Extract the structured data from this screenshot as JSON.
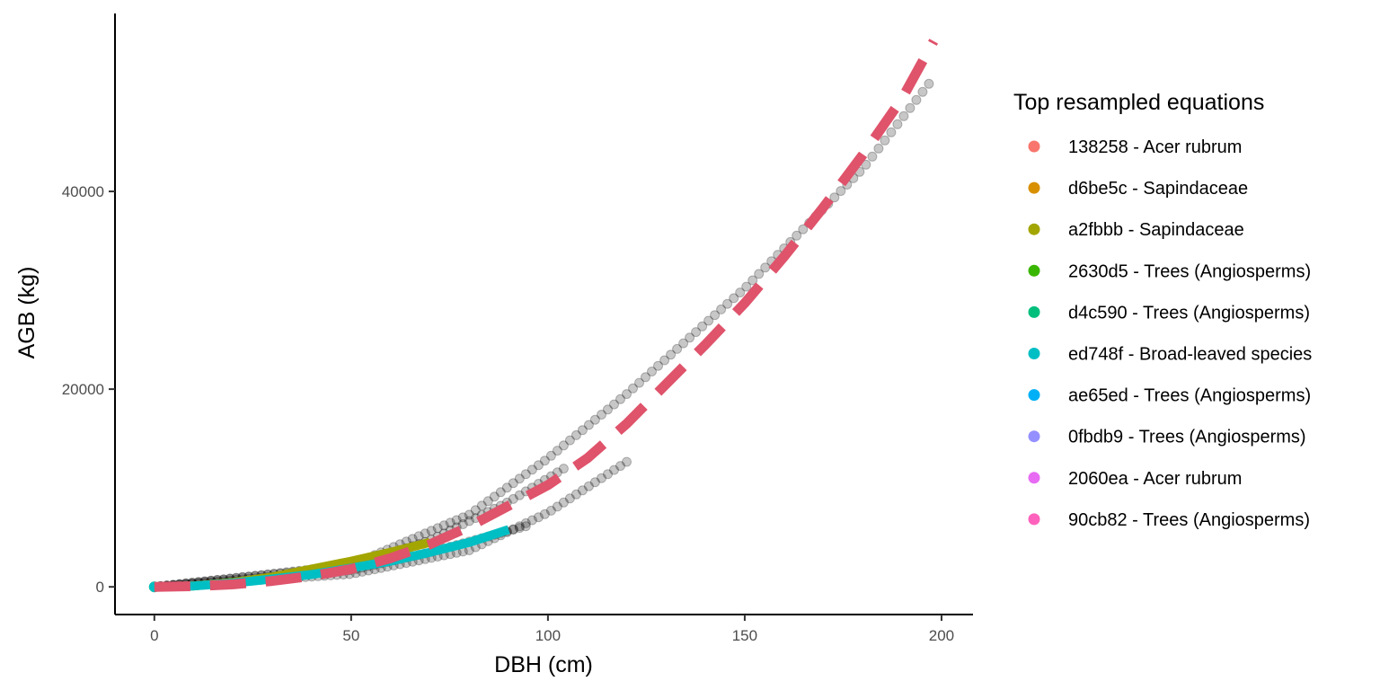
{
  "chart_data": {
    "type": "scatter",
    "title": "",
    "xlabel": "DBH (cm)",
    "ylabel": "AGB (kg)",
    "xlim": [
      -10,
      208
    ],
    "ylim": [
      -2800,
      58000
    ],
    "x_ticks": [
      0,
      50,
      100,
      150,
      200
    ],
    "y_ticks": [
      0,
      20000,
      40000
    ],
    "grid": false,
    "legend": {
      "title": "Top resampled equations",
      "placement": "right",
      "entries": [
        {
          "label": "138258 - Acer rubrum",
          "color": "#F8766D"
        },
        {
          "label": "d6be5c - Sapindaceae",
          "color": "#D89000"
        },
        {
          "label": "a2fbbb - Sapindaceae",
          "color": "#A3A500"
        },
        {
          "label": "2630d5 - Trees (Angiosperms)",
          "color": "#39B600"
        },
        {
          "label": "d4c590 - Trees (Angiosperms)",
          "color": "#00BF7D"
        },
        {
          "label": "ed748f - Broad-leaved species",
          "color": "#00BFC4"
        },
        {
          "label": "ae65ed - Trees (Angiosperms)",
          "color": "#00B0F6"
        },
        {
          "label": "0fbdb9 - Trees (Angiosperms)",
          "color": "#9590FF"
        },
        {
          "label": "2060ea - Acer rubrum",
          "color": "#E76BF3"
        },
        {
          "label": "90cb82 - Trees (Angiosperms)",
          "color": "#FF62BC"
        }
      ]
    },
    "background_points": {
      "color": "#000000",
      "opacity": 0.22,
      "series": [
        {
          "x_range": [
            0,
            198
          ],
          "y_at_x": [
            [
              0,
              0
            ],
            [
              50,
              2200
            ],
            [
              80,
              7300
            ],
            [
              100,
              13000
            ],
            [
              120,
              19500
            ],
            [
              150,
              30200
            ],
            [
              180,
              42300
            ],
            [
              198,
              51500
            ]
          ]
        },
        {
          "x_range": [
            0,
            105
          ],
          "y_at_x": [
            [
              0,
              0
            ],
            [
              50,
              2100
            ],
            [
              70,
              4700
            ],
            [
              90,
              8600
            ],
            [
              105,
              12200
            ]
          ]
        },
        {
          "x_range": [
            0,
            121
          ],
          "y_at_x": [
            [
              0,
              0
            ],
            [
              50,
              1300
            ],
            [
              80,
              3700
            ],
            [
              100,
              7500
            ],
            [
              121,
              12900
            ]
          ]
        },
        {
          "x_range": [
            0,
            95
          ],
          "y_at_x": [
            [
              0,
              0
            ],
            [
              50,
              1700
            ],
            [
              70,
              3500
            ],
            [
              95,
              6200
            ]
          ]
        }
      ]
    },
    "series": [
      {
        "color": "#A3A500",
        "x": [
          0,
          10,
          20,
          30,
          40,
          50,
          60,
          70
        ],
        "y": [
          0,
          100,
          450,
          1000,
          1800,
          2600,
          3500,
          4500
        ]
      },
      {
        "color": "#00BFC4",
        "x": [
          0,
          10,
          20,
          30,
          40,
          50,
          60,
          70,
          80,
          90
        ],
        "y": [
          0,
          90,
          380,
          800,
          1250,
          1900,
          2600,
          3500,
          4500,
          5800
        ]
      },
      {
        "color": "#DF536B",
        "dashed": true,
        "x": [
          0,
          10,
          20,
          30,
          40,
          50,
          60,
          70,
          80,
          90,
          100,
          110,
          120,
          130,
          140,
          150,
          160,
          170,
          180,
          190,
          198
        ],
        "y": [
          0,
          60,
          250,
          600,
          1100,
          1800,
          2900,
          4300,
          6100,
          8200,
          10300,
          13000,
          16500,
          20500,
          24500,
          28700,
          33400,
          38400,
          43700,
          49400,
          55200
        ]
      }
    ]
  }
}
